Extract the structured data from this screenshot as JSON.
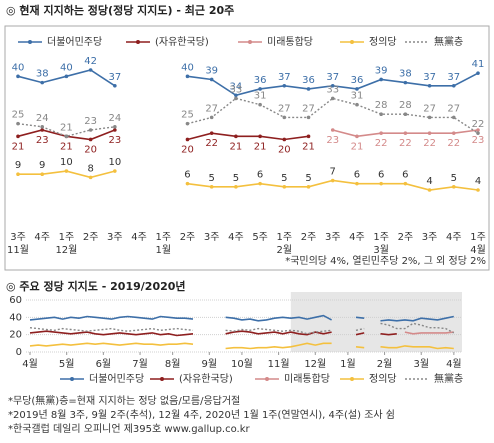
{
  "chart_data": [
    {
      "type": "line",
      "title": "◎  현재 지지하는 정당(정당 지지도) - 최근 20주",
      "categories": [
        "3주\n11월",
        "4주",
        "1주\n12월",
        "2주",
        "3주",
        "4주",
        "1주\n1월",
        "2주",
        "3주",
        "4주",
        "5주",
        "1주\n2월",
        "2주",
        "3주",
        "4주",
        "1주\n3월",
        "2주",
        "3주",
        "4주",
        "1주\n4월"
      ],
      "data_labels": true,
      "series": [
        {
          "name": "더불어민주당",
          "color": "#3d6fa8",
          "values": [
            40,
            38,
            40,
            42,
            37,
            null,
            null,
            40,
            39,
            34,
            36,
            37,
            36,
            37,
            36,
            39,
            38,
            37,
            37,
            41
          ]
        },
        {
          "name": "(자유한국당)",
          "color": "#8e1f1f",
          "values": [
            21,
            23,
            21,
            20,
            23,
            null,
            null,
            20,
            22,
            21,
            21,
            20,
            21,
            null,
            null,
            null,
            null,
            null,
            null,
            null
          ]
        },
        {
          "name": "미래통합당",
          "color": "#d48a8a",
          "values": [
            null,
            null,
            null,
            null,
            null,
            null,
            null,
            null,
            null,
            null,
            null,
            null,
            null,
            23,
            21,
            22,
            22,
            22,
            22,
            23
          ]
        },
        {
          "name": "정의당",
          "color": "#f4c03e",
          "values": [
            9,
            9,
            10,
            8,
            10,
            null,
            null,
            6,
            5,
            5,
            6,
            5,
            5,
            7,
            6,
            6,
            6,
            4,
            5,
            4
          ]
        },
        {
          "name": "無黨층",
          "color": "#888888",
          "style": "dotted",
          "values": [
            25,
            24,
            21,
            23,
            24,
            null,
            null,
            25,
            27,
            33,
            31,
            27,
            27,
            33,
            31,
            28,
            28,
            27,
            27,
            22
          ]
        }
      ],
      "annotations": [
        "*국민의당 4%, 열린민주당 2%, 그 외 정당 2%"
      ]
    },
    {
      "type": "line",
      "title": "◎  주요 정당 지지도 - 2019/2020년",
      "x": [
        0,
        1,
        2,
        3,
        4,
        5,
        6,
        7,
        8,
        9,
        10,
        11,
        12,
        13,
        14,
        15,
        16,
        17,
        18,
        19,
        20,
        21,
        22,
        23,
        24,
        25,
        26,
        27,
        28,
        29,
        30,
        31,
        32,
        33,
        34,
        35,
        36,
        37,
        38,
        39,
        40,
        41,
        42,
        43,
        44,
        45,
        46,
        47,
        48,
        49,
        50,
        51,
        52
      ],
      "xlim": [
        0,
        53
      ],
      "xticks": [
        {
          "value": 0,
          "label": "4월"
        },
        {
          "value": 4.5,
          "label": "5월"
        },
        {
          "value": 9,
          "label": "6월"
        },
        {
          "value": 13.5,
          "label": "7월"
        },
        {
          "value": 17.5,
          "label": "8월"
        },
        {
          "value": 22,
          "label": "9월"
        },
        {
          "value": 26,
          "label": "10월"
        },
        {
          "value": 30.5,
          "label": "11월"
        },
        {
          "value": 35,
          "label": "12월"
        },
        {
          "value": 39,
          "label": "1월"
        },
        {
          "value": 43.5,
          "label": "2월"
        },
        {
          "value": 48,
          "label": "3월"
        },
        {
          "value": 52,
          "label": "4월"
        }
      ],
      "ylim": [
        0,
        60
      ],
      "yticks": [
        0,
        20,
        40,
        60
      ],
      "grid": true,
      "highlight_x": [
        32,
        53
      ],
      "series": [
        {
          "name": "더불어민주당",
          "color": "#3d6fa8",
          "values": [
            37,
            38,
            39,
            40,
            38,
            40,
            39,
            41,
            40,
            39,
            38,
            40,
            41,
            40,
            39,
            38,
            41,
            40,
            39,
            39,
            38,
            null,
            38,
            null,
            40,
            39,
            37,
            38,
            36,
            37,
            39,
            40,
            39,
            40,
            38,
            40,
            42,
            37,
            null,
            null,
            40,
            39,
            null,
            36,
            37,
            36,
            37,
            36,
            39,
            38,
            37,
            39,
            41
          ]
        },
        {
          "name": "(자유한국당)",
          "color": "#8e1f1f",
          "values": [
            22,
            23,
            24,
            23,
            22,
            21,
            22,
            23,
            21,
            20,
            21,
            22,
            21,
            20,
            21,
            22,
            20,
            21,
            19,
            20,
            21,
            null,
            20,
            null,
            21,
            23,
            24,
            23,
            21,
            22,
            23,
            21,
            23,
            21,
            20,
            23,
            21,
            23,
            null,
            null,
            20,
            22,
            null,
            21,
            20,
            21,
            null,
            null,
            null,
            null,
            null,
            null,
            null
          ]
        },
        {
          "name": "미래통합당",
          "color": "#d48a8a",
          "values": [
            null,
            null,
            null,
            null,
            null,
            null,
            null,
            null,
            null,
            null,
            null,
            null,
            null,
            null,
            null,
            null,
            null,
            null,
            null,
            null,
            null,
            null,
            null,
            null,
            null,
            null,
            null,
            null,
            null,
            null,
            null,
            null,
            null,
            null,
            null,
            null,
            null,
            null,
            null,
            null,
            null,
            null,
            null,
            null,
            null,
            null,
            23,
            21,
            22,
            22,
            22,
            22,
            23
          ]
        },
        {
          "name": "정의당",
          "color": "#f4c03e",
          "values": [
            7,
            8,
            7,
            8,
            9,
            8,
            9,
            10,
            9,
            10,
            9,
            8,
            9,
            10,
            9,
            9,
            8,
            9,
            9,
            10,
            9,
            null,
            5,
            null,
            4,
            5,
            5,
            4,
            5,
            5,
            6,
            5,
            6,
            8,
            10,
            8,
            10,
            10,
            null,
            null,
            6,
            5,
            null,
            6,
            5,
            5,
            7,
            6,
            6,
            6,
            4,
            5,
            4
          ]
        },
        {
          "name": "無黨층",
          "color": "#888888",
          "style": "dotted",
          "values": [
            28,
            27,
            26,
            25,
            27,
            26,
            25,
            24,
            25,
            26,
            27,
            25,
            24,
            25,
            26,
            27,
            25,
            26,
            27,
            26,
            25,
            null,
            26,
            null,
            25,
            24,
            26,
            25,
            27,
            26,
            25,
            24,
            25,
            24,
            21,
            23,
            24,
            25,
            null,
            null,
            25,
            27,
            null,
            33,
            31,
            27,
            27,
            33,
            31,
            28,
            28,
            27,
            22
          ]
        }
      ],
      "annotations": [
        "*무당(無黨)층=현재 지지하는 정당 없음/모름/응답거절",
        "*2019년 8월 3주, 9월 2주(추석), 12월 4주, 2020년 1월 1주(연말연시), 4주(설) 조사 쉼",
        "*한국갤럽 데일리 오피니언 제395호 www.gallup.co.kr"
      ]
    }
  ]
}
